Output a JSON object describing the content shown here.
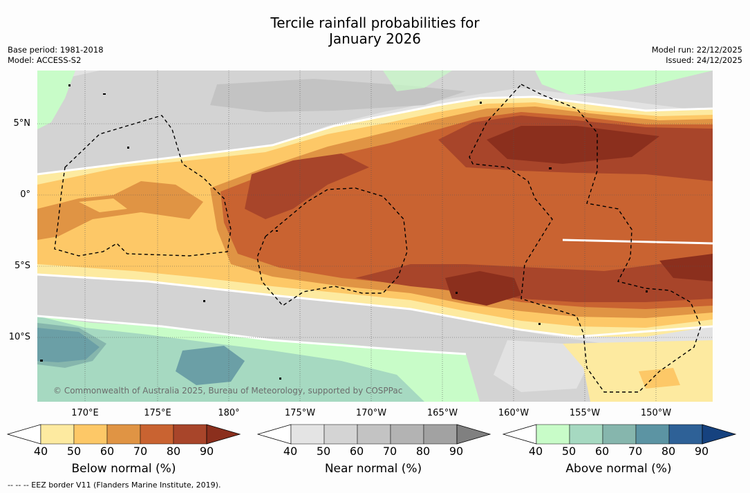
{
  "title": {
    "line1": "Tercile rainfall probabilities for",
    "line2": "January 2026"
  },
  "meta": {
    "base_period": "Base period: 1981-2018",
    "model": "Model: ACCESS-S2",
    "model_run": "Model run: 22/12/2025",
    "issued": "Issued: 24/12/2025"
  },
  "map": {
    "lat_labels": [
      "5°N",
      "0°",
      "5°S",
      "10°S"
    ],
    "lon_labels": [
      "170°E",
      "175°E",
      "180°",
      "175°W",
      "170°W",
      "165°W",
      "160°W",
      "155°W",
      "150°W"
    ],
    "copyright": "© Commonwealth of Australia 2025, Bureau of Meteorology, supported by COSPPac"
  },
  "colorbars": [
    {
      "title": "Below normal (%)",
      "ticks": [
        "40",
        "50",
        "60",
        "70",
        "80",
        "90"
      ],
      "colors": [
        "#fdeaa0",
        "#fdc867",
        "#e09444",
        "#c96331",
        "#a8452a",
        "#8b2f1d"
      ]
    },
    {
      "title": "Near normal (%)",
      "ticks": [
        "40",
        "50",
        "60",
        "70",
        "80",
        "90"
      ],
      "colors": [
        "#e4e4e4",
        "#d4d4d4",
        "#c3c3c3",
        "#b3b3b3",
        "#a2a2a2",
        "#808080"
      ]
    },
    {
      "title": "Above normal (%)",
      "ticks": [
        "40",
        "50",
        "60",
        "70",
        "80",
        "90"
      ],
      "colors": [
        "#c8fcc8",
        "#a6d9c1",
        "#86b6ad",
        "#5c94a3",
        "#2e6197",
        "#16427f"
      ]
    }
  ],
  "colors": {
    "white": "#ffffff",
    "nn40": "#e2e2e2",
    "nn50": "#d3d3d3",
    "nn60": "#c3c3c3",
    "nn70": "#b2b2b2",
    "nn80": "#a3a3a3",
    "bn40": "#fdeaa0",
    "bn50": "#fdc867",
    "bn60": "#e09444",
    "bn70": "#c96331",
    "bn80": "#a8452a",
    "bn90": "#8b2f1d",
    "an40": "#c8fcc8",
    "an50": "#a6d9c1",
    "an60": "#86b6ad",
    "an70": "#6b9fa6"
  },
  "footnote": "-- -- -- EEZ border V11 (Flanders Marine Institute, 2019)."
}
